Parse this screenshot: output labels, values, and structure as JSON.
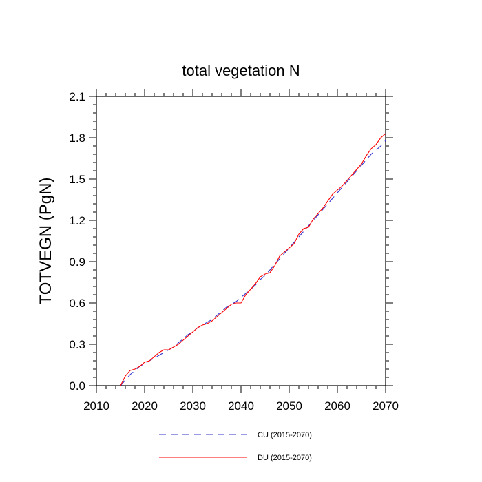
{
  "chart_data": {
    "type": "line",
    "title": "total vegetation N",
    "xlabel": "",
    "ylabel": "TOTVEGN  (PgN)",
    "xlim": [
      2010,
      2070
    ],
    "ylim": [
      0.0,
      2.1
    ],
    "x_ticks": [
      2010,
      2020,
      2030,
      2040,
      2050,
      2060,
      2070
    ],
    "x_tick_labels": [
      "2010",
      "2020",
      "2030",
      "2040",
      "2050",
      "2060",
      "2070"
    ],
    "y_ticks": [
      0.0,
      0.3,
      0.6,
      0.9,
      1.2,
      1.5,
      1.8,
      2.1
    ],
    "y_tick_labels": [
      "0.0",
      "0.3",
      "0.6",
      "0.9",
      "1.2",
      "1.5",
      "1.8",
      "2.1"
    ],
    "grid": false,
    "legend_position": "bottom",
    "series": [
      {
        "name": "CU (2015-2070)",
        "color": "#3333cc",
        "line_style": "dashed",
        "x": [
          2015,
          2016,
          2017,
          2018,
          2019,
          2020,
          2021,
          2022,
          2023,
          2024,
          2025,
          2026,
          2027,
          2028,
          2029,
          2030,
          2031,
          2032,
          2033,
          2034,
          2035,
          2036,
          2037,
          2038,
          2039,
          2040,
          2041,
          2042,
          2043,
          2044,
          2045,
          2046,
          2047,
          2048,
          2049,
          2050,
          2051,
          2052,
          2053,
          2054,
          2055,
          2056,
          2057,
          2058,
          2059,
          2060,
          2061,
          2062,
          2063,
          2064,
          2065,
          2066,
          2067,
          2068,
          2069,
          2070
        ],
        "y": [
          0.0,
          0.04,
          0.08,
          0.11,
          0.14,
          0.16,
          0.18,
          0.2,
          0.22,
          0.24,
          0.26,
          0.28,
          0.31,
          0.34,
          0.37,
          0.39,
          0.42,
          0.44,
          0.46,
          0.48,
          0.51,
          0.54,
          0.57,
          0.59,
          0.61,
          0.64,
          0.67,
          0.7,
          0.73,
          0.77,
          0.8,
          0.84,
          0.88,
          0.92,
          0.96,
          1.0,
          1.04,
          1.08,
          1.12,
          1.16,
          1.2,
          1.24,
          1.28,
          1.32,
          1.36,
          1.4,
          1.44,
          1.48,
          1.52,
          1.56,
          1.6,
          1.64,
          1.68,
          1.71,
          1.74,
          1.78
        ]
      },
      {
        "name": "DU (2015-2070)",
        "color": "#ff0000",
        "line_style": "solid",
        "x": [
          2015,
          2016,
          2017,
          2018,
          2019,
          2020,
          2021,
          2022,
          2023,
          2024,
          2025,
          2026,
          2027,
          2028,
          2029,
          2030,
          2031,
          2032,
          2033,
          2034,
          2035,
          2036,
          2037,
          2038,
          2039,
          2040,
          2041,
          2042,
          2043,
          2044,
          2045,
          2046,
          2047,
          2048,
          2049,
          2050,
          2051,
          2052,
          2053,
          2054,
          2055,
          2056,
          2057,
          2058,
          2059,
          2060,
          2061,
          2062,
          2063,
          2064,
          2065,
          2066,
          2067,
          2068,
          2069,
          2070
        ],
        "y": [
          0.0,
          0.07,
          0.11,
          0.12,
          0.14,
          0.17,
          0.18,
          0.21,
          0.24,
          0.26,
          0.26,
          0.28,
          0.3,
          0.33,
          0.36,
          0.39,
          0.42,
          0.44,
          0.45,
          0.47,
          0.5,
          0.53,
          0.56,
          0.59,
          0.6,
          0.6,
          0.66,
          0.7,
          0.74,
          0.79,
          0.81,
          0.82,
          0.87,
          0.94,
          0.97,
          1.0,
          1.03,
          1.1,
          1.14,
          1.15,
          1.21,
          1.25,
          1.29,
          1.34,
          1.39,
          1.42,
          1.45,
          1.49,
          1.53,
          1.57,
          1.61,
          1.67,
          1.72,
          1.75,
          1.8,
          1.83
        ]
      }
    ]
  }
}
